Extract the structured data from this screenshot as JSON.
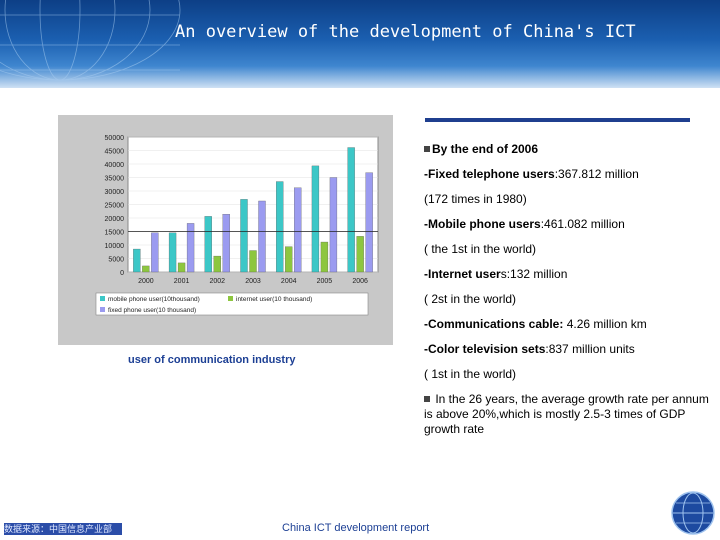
{
  "slide": {
    "title": "An overview of the development of China's ICT",
    "caption": "user of communication industry",
    "footer_source": "数据来源：中国信息产业部",
    "footer_report": "China ICT development report"
  },
  "bullets": {
    "heading": "By the end of 2006",
    "items": [
      {
        "label": "-Fixed telephone users",
        "value": ":367.812 million"
      },
      {
        "label": "",
        "value": "(172 times in 1980)"
      },
      {
        "label": "-Mobile phone users",
        "value": ":461.082 million"
      },
      {
        "label": "",
        "value": "( the 1st in the world)"
      },
      {
        "label": "-Internet user",
        "value": "s:132 million"
      },
      {
        "label": "",
        "value": "( 2st in the world)"
      },
      {
        "label": "-Communications cable:",
        "value": " 4.26 million km"
      },
      {
        "label": "-Color television sets",
        "value": ":837 million units"
      },
      {
        "label": "",
        "value": "( 1st in the world)"
      }
    ],
    "summary": "In the 26 years, the average growth rate per annum is above 20%,which is mostly 2.5-3 times of GDP growth rate"
  },
  "chart_data": {
    "type": "bar",
    "categories": [
      "2000",
      "2001",
      "2002",
      "2003",
      "2004",
      "2005",
      "2006"
    ],
    "ylim": [
      0,
      50000
    ],
    "yticks": [
      "50000",
      "45000",
      "40000",
      "35000",
      "30000",
      "25000",
      "20000",
      "15000",
      "10000",
      "5000",
      "0"
    ],
    "series": [
      {
        "name": "mobile phone user(10thousand)",
        "color": "#3cc7c7",
        "values": [
          8500,
          14500,
          20600,
          26900,
          33500,
          39300,
          46100
        ]
      },
      {
        "name": "internet user(10 thousand)",
        "color": "#8dc63f",
        "values": [
          2250,
          3370,
          5900,
          7950,
          9400,
          11100,
          13200
        ]
      },
      {
        "name": "fixed phone user(10 thousand)",
        "color": "#9b9bf0",
        "values": [
          14500,
          18000,
          21400,
          26300,
          31200,
          35000,
          36800
        ]
      }
    ],
    "reference_line": 15000
  },
  "colors": {
    "header": "#1b5fb0",
    "accent": "#1f3f8f",
    "caption": "#1c3f94"
  }
}
